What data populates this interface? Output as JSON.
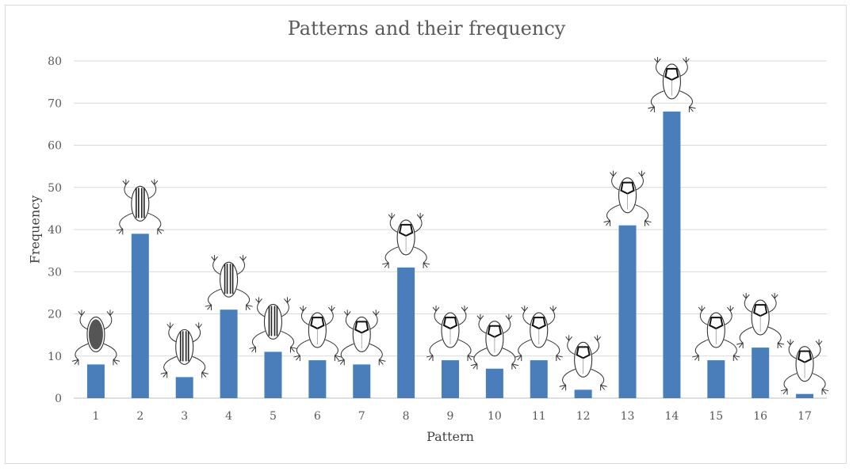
{
  "chart_data": {
    "type": "bar",
    "title": "Patterns and their frequency",
    "xlabel": "Pattern",
    "ylabel": "Frequency",
    "categories": [
      "1",
      "2",
      "3",
      "4",
      "5",
      "6",
      "7",
      "8",
      "9",
      "10",
      "11",
      "12",
      "13",
      "14",
      "15",
      "16",
      "17"
    ],
    "values": [
      8,
      39,
      5,
      21,
      11,
      9,
      8,
      31,
      9,
      7,
      9,
      2,
      41,
      68,
      9,
      12,
      1
    ],
    "ylim": [
      0,
      80
    ],
    "yticks": [
      0,
      10,
      20,
      30,
      40,
      50,
      60,
      70,
      80
    ],
    "grid": true,
    "bar_color": "#4a7ebb",
    "grid_color": "#d9d9d9",
    "annotations": "frog pattern drawing above each bar"
  }
}
